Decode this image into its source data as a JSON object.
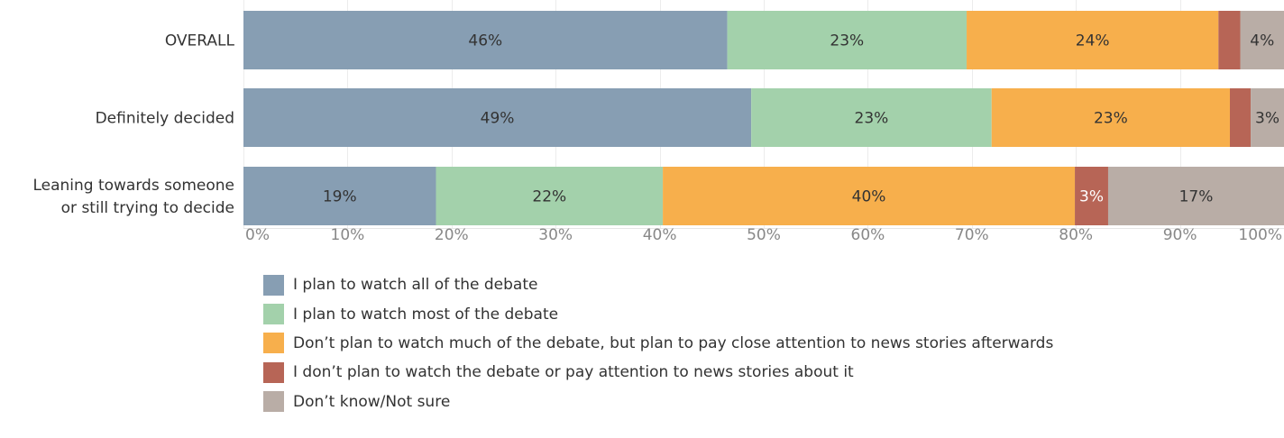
{
  "chart_data": {
    "type": "bar",
    "orientation": "horizontal",
    "stacked": true,
    "categories": [
      [
        "OVERALL"
      ],
      [
        "Definitely decided"
      ],
      [
        "Leaning towards someone",
        "or still trying to decide"
      ]
    ],
    "series": [
      {
        "name": "I plan to watch all of the debate",
        "color": "#879eb3",
        "values": [
          46.5,
          48.8,
          18.5
        ],
        "labels": [
          "46%",
          "49%",
          "19%"
        ]
      },
      {
        "name": "I plan to watch most of the debate",
        "color": "#a3d1ab",
        "values": [
          23.0,
          23.1,
          21.8
        ],
        "labels": [
          "23%",
          "23%",
          "22%"
        ]
      },
      {
        "name": "Don’t plan to watch much of the debate, but plan to pay close attention to news stories afterwards",
        "color": "#f7af4c",
        "values": [
          24.2,
          22.9,
          39.6
        ],
        "labels": [
          "24%",
          "23%",
          "40%"
        ]
      },
      {
        "name": "I don’t plan to watch the debate or pay attention to news stories about it",
        "color": "#b76556",
        "values": [
          2.1,
          2.0,
          3.2
        ],
        "labels": [
          "",
          "",
          "3%"
        ]
      },
      {
        "name": "Don’t know/Not sure",
        "color": "#b9ada6",
        "values": [
          4.2,
          3.2,
          16.9
        ],
        "labels": [
          "4%",
          "3%",
          "17%"
        ]
      }
    ],
    "label_colors": [
      [
        "#333333",
        "#333333",
        "#333333"
      ],
      [
        "#333333",
        "#333333",
        "#333333"
      ],
      [
        "#333333",
        "#333333",
        "#333333"
      ],
      [
        "#ffffff",
        "#ffffff",
        "#ffffff"
      ],
      [
        "#333333",
        "#333333",
        "#333333"
      ]
    ],
    "xlim": [
      0,
      100
    ],
    "xticks": [
      "0%",
      "10%",
      "20%",
      "30%",
      "40%",
      "50%",
      "60%",
      "70%",
      "80%",
      "90%",
      "100%"
    ],
    "title": "",
    "xlabel": "",
    "ylabel": "",
    "grid": true,
    "legend_position": "bottom"
  }
}
